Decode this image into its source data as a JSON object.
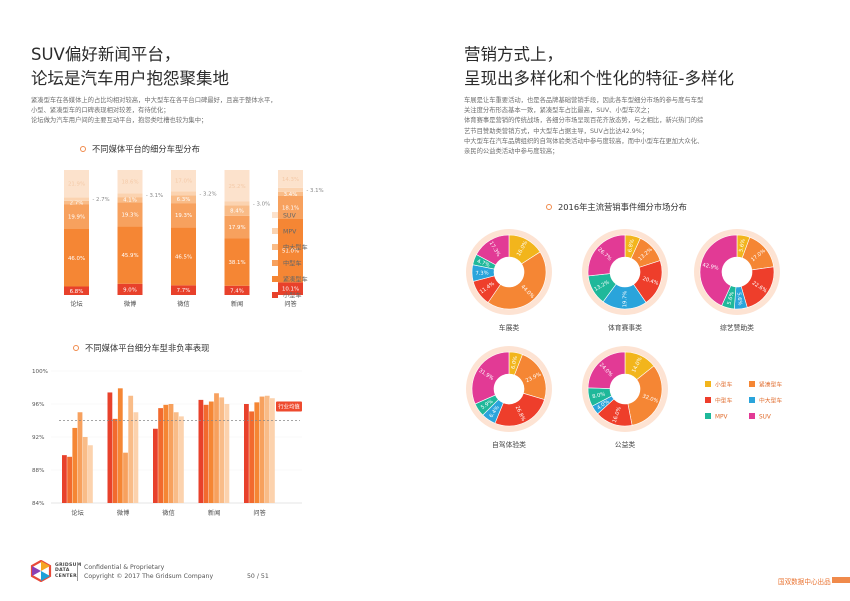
{
  "left": {
    "title_line1": "SUV偏好新闻平台，",
    "title_line2": "论坛是汽车用户抱怨聚集地",
    "paragraph": [
      "紧凑型车在各媒体上的占比均相对较高，中大型车在各平台口碑最好，且高于整体水平，",
      "小型、紧凑型车的口碑表现相对较差，有待优化；",
      "论坛做为汽车用户间的主要互动平台，抱怨类吐槽也较为集中；"
    ]
  },
  "right": {
    "title_line1": "营销方式上，",
    "title_line2": "呈现出多样化和个性化的特征-多样化",
    "paragraph": [
      "车展是让车重要活动，也是各品牌基础营销手段，因此各车型细分市场的参与度与车型",
      "关注度分布形态基本一致，紧凑型车占比最高，SUV、小型车次之；",
      "体育赛事是营销的传统战场，各细分市场呈现百花齐放态势，与之相比，新兴热门的综",
      "艺节目赞助类营销方式，中大型车占据主导，SUV占比达42.9%；",
      "中大型车在汽车品牌组织的自驾体验类活动中参与度较高，而中小型车在更加大众化、",
      "亲民的公益类活动中参与度较高；"
    ]
  },
  "footer": {
    "logo_line1": "GRIDSUM",
    "logo_line2": "DATA",
    "logo_line3": "CENTER",
    "confidential": "Confidential & Proprietary",
    "copyright": "Copyright © 2017 The Gridsum Company",
    "page": "50 / 51",
    "right_label": "国双数据中心出品"
  },
  "colors": {
    "小型车": "#e8412b",
    "紧凑型车": "#f58634",
    "中型车": "#f7a15e",
    "中大型车": "#f9bc88",
    "MPV": "#fbd3b0",
    "SUV": "#fce2cc",
    "accent": "#f08a4b"
  },
  "chart_data": [
    {
      "type": "bar",
      "title": "不同媒体平台的细分车型分布",
      "stacked": true,
      "categories": [
        "论坛",
        "微博",
        "微信",
        "新闻",
        "问答"
      ],
      "series": [
        {
          "name": "小型车",
          "values": [
            6.8,
            9.0,
            7.7,
            7.4,
            10.1
          ]
        },
        {
          "name": "紧凑型车",
          "values": [
            46.0,
            45.9,
            46.5,
            38.1,
            51.0
          ]
        },
        {
          "name": "中型车",
          "values": [
            19.9,
            19.3,
            19.3,
            17.9,
            18.1
          ]
        },
        {
          "name": "中大型车",
          "values": [
            2.7,
            4.1,
            6.3,
            8.4,
            3.4
          ]
        },
        {
          "name": "MPV",
          "values": [
            2.7,
            3.1,
            3.2,
            3.0,
            3.1
          ]
        },
        {
          "name": "SUV",
          "values": [
            21.9,
            18.6,
            17.0,
            25.2,
            14.3
          ]
        }
      ],
      "labels": {
        "小型车": [
          "6.8%",
          "9.0%",
          "7.7%",
          "7.4%",
          "10.1%"
        ],
        "紧凑型车": [
          "46.0%",
          "45.9%",
          "46.5%",
          "38.1%",
          "51.0%"
        ],
        "中型车": [
          "19.9%",
          "19.3%",
          "19.3%",
          "17.9%",
          "18.1%"
        ],
        "中大型车": [
          "2.7%",
          "4.1%",
          "6.3%",
          "8.4%",
          "3.4%"
        ],
        "MPV": [
          "2.7%",
          "3.1%",
          "3.2%",
          "3.0%",
          "3.1%"
        ],
        "SUV": [
          "21.9%",
          "18.6%",
          "17.0%",
          "25.2%",
          "14.3%"
        ]
      },
      "legend_order": [
        "SUV",
        "MPV",
        "中大型车",
        "中型车",
        "紧凑型车",
        "小型车"
      ],
      "ylim": [
        0,
        100
      ]
    },
    {
      "type": "bar",
      "title": "不同媒体平台细分车型非负率表现",
      "categories": [
        "论坛",
        "微博",
        "微信",
        "新闻",
        "问答"
      ],
      "series": [
        {
          "name": "小型车",
          "values": [
            89.8,
            97.4,
            93.0,
            96.5,
            96.0
          ]
        },
        {
          "name": "紧凑型车",
          "values": [
            89.6,
            94.2,
            95.5,
            95.9,
            95.1
          ]
        },
        {
          "name": "中型车",
          "values": [
            93.1,
            97.9,
            95.9,
            96.3,
            96.2
          ]
        },
        {
          "name": "中大型车",
          "values": [
            95.0,
            90.1,
            96.0,
            97.3,
            96.9
          ]
        },
        {
          "name": "MPV",
          "values": [
            92.0,
            97.0,
            95.0,
            96.8,
            97.0
          ]
        },
        {
          "name": "SUV",
          "values": [
            91.0,
            95.0,
            94.5,
            96.0,
            96.7
          ]
        }
      ],
      "reference_label": "行业均值",
      "reference_value": 94.0,
      "yticks": [
        "100%",
        "96%",
        "92%",
        "88%",
        "84%"
      ],
      "ylim": [
        84,
        100
      ]
    },
    {
      "type": "pie",
      "title": "2016年主流营销事件细分市场分布",
      "donuts": [
        {
          "name": "车展类",
          "slices": [
            {
              "label": "小型车",
              "value": 16.0,
              "text": "16.0%"
            },
            {
              "label": "紧凑型车",
              "value": 44.0,
              "text": "44.0%"
            },
            {
              "label": "中型车",
              "value": 11.4,
              "text": "11.4%"
            },
            {
              "label": "中大型车",
              "value": 7.3,
              "text": "7.3%"
            },
            {
              "label": "MPV",
              "value": 4.7,
              "text": "4.7%"
            },
            {
              "label": "SUV",
              "value": 17.3,
              "text": "17.3%"
            }
          ]
        },
        {
          "name": "体育赛事类",
          "slices": [
            {
              "label": "小型车",
              "value": 6.8,
              "text": "6.8%"
            },
            {
              "label": "紧凑型车",
              "value": 13.2,
              "text": "13.2%"
            },
            {
              "label": "中型车",
              "value": 20.4,
              "text": "20.4%"
            },
            {
              "label": "中大型车",
              "value": 19.7,
              "text": "19.7%"
            },
            {
              "label": "MPV",
              "value": 13.2,
              "text": "13.2%"
            },
            {
              "label": "SUV",
              "value": 26.7,
              "text": "26.7%"
            }
          ]
        },
        {
          "name": "综艺赞助类",
          "slices": [
            {
              "label": "小型车",
              "value": 5.6,
              "text": "5.6%"
            },
            {
              "label": "紧凑型车",
              "value": 17.0,
              "text": "17.0%"
            },
            {
              "label": "中型车",
              "value": 22.6,
              "text": "22.6%"
            },
            {
              "label": "中大型车",
              "value": 5.6,
              "text": "5.6%"
            },
            {
              "label": "MPV",
              "value": 5.6,
              "text": "5.6%"
            },
            {
              "label": "SUV",
              "value": 42.9,
              "text": "42.9%"
            }
          ]
        },
        {
          "name": "自驾体验类",
          "slices": [
            {
              "label": "小型车",
              "value": 6.0,
              "text": "6.0%"
            },
            {
              "label": "紧凑型车",
              "value": 23.9,
              "text": "23.9%"
            },
            {
              "label": "中型车",
              "value": 26.8,
              "text": "26.8%"
            },
            {
              "label": "中大型车",
              "value": 6.4,
              "text": "6.4%"
            },
            {
              "label": "MPV",
              "value": 5.9,
              "text": "5.9%"
            },
            {
              "label": "SUV",
              "value": 31.9,
              "text": "31.9%"
            }
          ]
        },
        {
          "name": "公益类",
          "slices": [
            {
              "label": "小型车",
              "value": 14.0,
              "text": "14.0%"
            },
            {
              "label": "紧凑型车",
              "value": 32.0,
              "text": "32.0%"
            },
            {
              "label": "中型车",
              "value": 16.0,
              "text": "16.0%"
            },
            {
              "label": "中大型车",
              "value": 4.0,
              "text": "4.0%"
            },
            {
              "label": "MPV",
              "value": 8.0,
              "text": "8.0%"
            },
            {
              "label": "SUV",
              "value": 24.0,
              "text": "24.0%"
            }
          ]
        }
      ],
      "legend": [
        {
          "label": "小型车",
          "color": "#f2b51c"
        },
        {
          "label": "紧凑型车",
          "color": "#f58634"
        },
        {
          "label": "中型车",
          "color": "#ee3e2b"
        },
        {
          "label": "中大型车",
          "color": "#2aa4db"
        },
        {
          "label": "MPV",
          "color": "#1fb89a"
        },
        {
          "label": "SUV",
          "color": "#e23a95"
        }
      ]
    }
  ]
}
